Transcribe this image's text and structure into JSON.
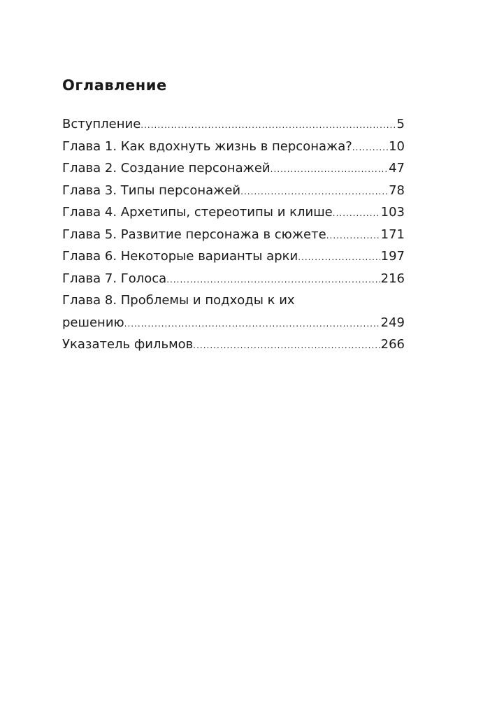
{
  "title": "Оглавление",
  "entries": [
    {
      "label": "Вступление",
      "page": "5"
    },
    {
      "label": "Глава 1. Как вдохнуть жизнь в персонажа?",
      "page": "10"
    },
    {
      "label": "Глава 2. Создание персонажей",
      "page": "47"
    },
    {
      "label": "Глава 3. Типы персонажей",
      "page": "78"
    },
    {
      "label": "Глава 4. Архетипы, стереотипы и клише",
      "page": "103"
    },
    {
      "label": "Глава 5. Развитие персонажа в сюжете",
      "page": "171"
    },
    {
      "label": "Глава 6. Некоторые варианты арки",
      "page": "197"
    },
    {
      "label": "Глава 7. Голоса",
      "page": "216"
    },
    {
      "label": "Глава 8. Проблемы и подходы к их",
      "label2": "решению",
      "page": "249"
    },
    {
      "label": "Указатель фильмов",
      "page": "266"
    }
  ]
}
